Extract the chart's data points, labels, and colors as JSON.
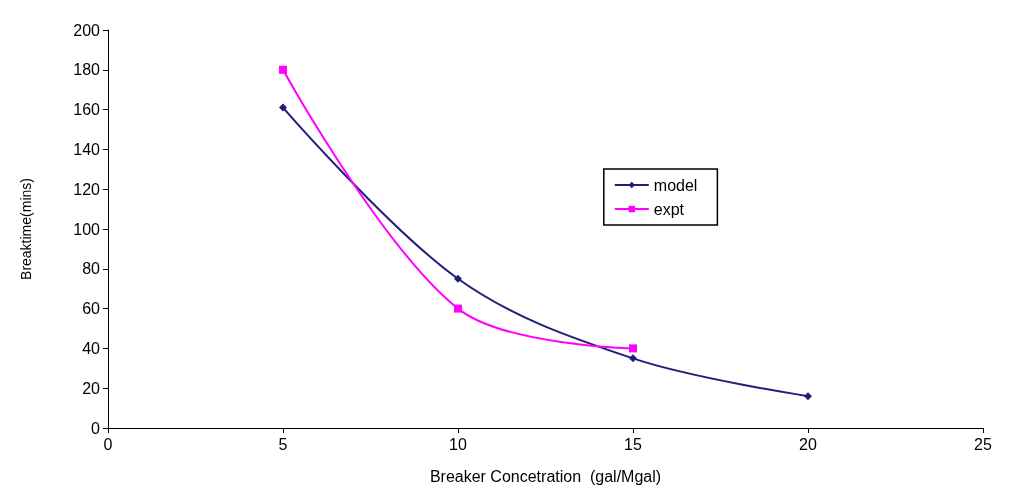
{
  "chart_data": {
    "type": "line",
    "xlabel": "Breaker Concetration  (gal/Mgal)",
    "ylabel": "Breaktime(mins)",
    "xlim": [
      0,
      25
    ],
    "xticks": [
      0,
      5,
      10,
      15,
      20,
      25
    ],
    "ylim": [
      0,
      200
    ],
    "yticks": [
      0,
      20,
      40,
      60,
      80,
      100,
      120,
      140,
      160,
      180,
      200
    ],
    "grid": false,
    "legend": "right",
    "line_style": "solid",
    "series": [
      {
        "name": "model",
        "color": "#1f1f7a",
        "marker": "diamond",
        "x": [
          5,
          10,
          15,
          20
        ],
        "values": [
          161,
          75,
          35,
          16
        ]
      },
      {
        "name": "expt",
        "color": "#ff00ff",
        "marker": "square",
        "x": [
          5,
          10,
          15
        ],
        "values": [
          180,
          60,
          40
        ]
      }
    ]
  }
}
